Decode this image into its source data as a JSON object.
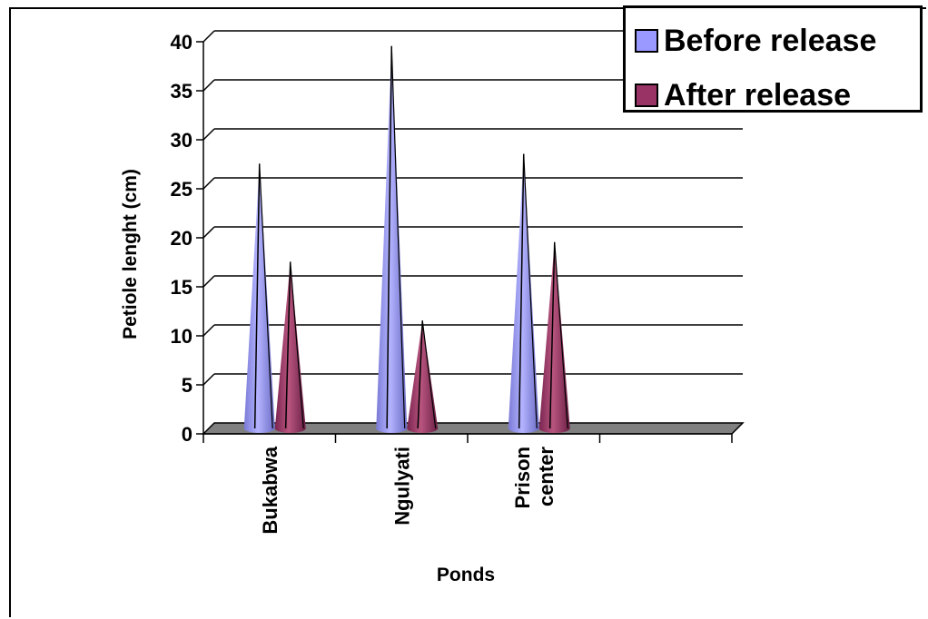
{
  "chart_data": {
    "type": "bar",
    "categories": [
      "Bukabwa",
      "Ngulyati",
      "Prison center"
    ],
    "series": [
      {
        "name": "Before release",
        "values": [
          27,
          39,
          28
        ],
        "color": "#9999ff"
      },
      {
        "name": "After release",
        "values": [
          17,
          11,
          19
        ],
        "color": "#993366"
      }
    ],
    "xlabel": "Ponds",
    "ylabel": "Petiole lenght (cm)",
    "ylim": [
      0,
      40
    ],
    "yticks": [
      0,
      5,
      10,
      15,
      20,
      25,
      30,
      35,
      40
    ],
    "grid": true,
    "legend_position": "top-right",
    "style": "3d-cone"
  },
  "category_label_lines": [
    [
      "Bukabwa"
    ],
    [
      "Ngulyati"
    ],
    [
      "Prison",
      "center"
    ]
  ]
}
